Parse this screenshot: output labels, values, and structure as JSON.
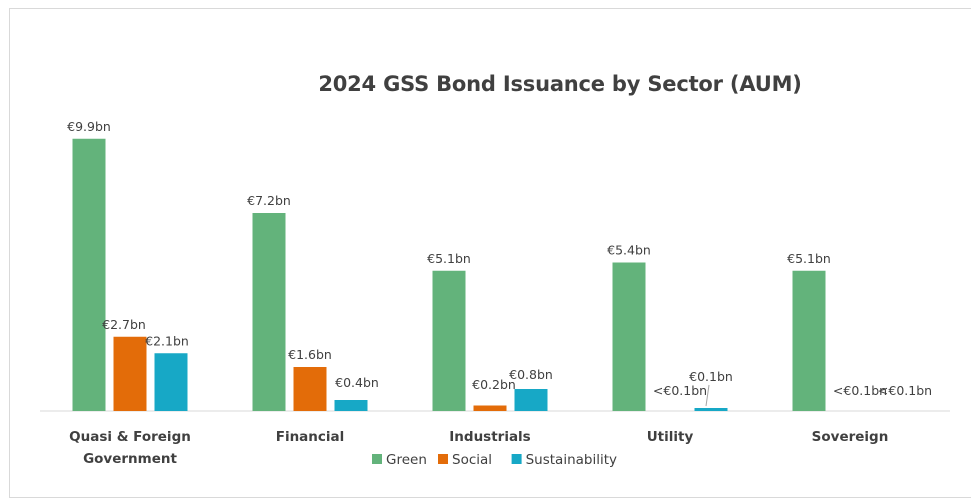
{
  "chart_data": {
    "type": "bar",
    "title": "2024 GSS Bond Issuance by Sector (AUM)",
    "categories": [
      [
        "Quasi & Foreign",
        "Government"
      ],
      [
        "Financial"
      ],
      [
        "Industrials"
      ],
      [
        "Utility"
      ],
      [
        "Sovereign"
      ]
    ],
    "series": [
      {
        "name": "Green",
        "color": "#63b37b",
        "values": [
          9.9,
          7.2,
          5.1,
          5.4,
          5.1
        ],
        "labels": [
          "€9.9bn",
          "€7.2bn",
          "€5.1bn",
          "€5.4bn",
          "€5.1bn"
        ]
      },
      {
        "name": "Social",
        "color": "#e36c09",
        "values": [
          2.7,
          1.6,
          0.2,
          0,
          0
        ],
        "labels": [
          "€2.7bn",
          "€1.6bn",
          "€0.2bn",
          "<€0.1bn",
          "<€0.1bn"
        ]
      },
      {
        "name": "Sustainability",
        "color": "#17a8c6",
        "values": [
          2.1,
          0.4,
          0.8,
          0.1,
          0
        ],
        "labels": [
          "€2.1bn",
          "€0.4bn",
          "€0.8bn",
          "€0.1bn",
          "<€0.1bn"
        ]
      }
    ],
    "ylim": [
      0,
      10.5
    ],
    "grid": false,
    "legend_position": "bottom"
  }
}
